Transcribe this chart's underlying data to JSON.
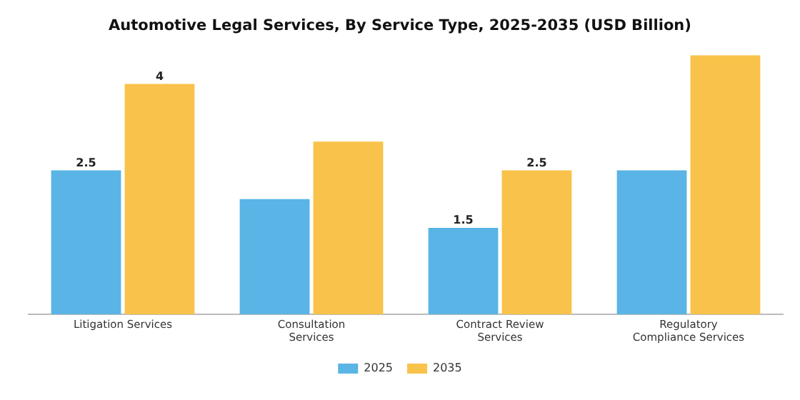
{
  "chart_data": {
    "type": "bar",
    "title": "Automotive Legal Services, By Service Type, 2025-2035 (USD Billion)",
    "categories": [
      "Litigation Services",
      "Consultation Services",
      "Contract Review Services",
      "Regulatory Compliance Services"
    ],
    "series": [
      {
        "name": "2025",
        "color": "#5ab4e5",
        "values": [
          2.5,
          2.0,
          1.5,
          2.5
        ],
        "value_labels": [
          "2.5",
          null,
          "1.5",
          null
        ]
      },
      {
        "name": "2035",
        "color": "#f9c24a",
        "values": [
          4,
          3.0,
          2.5,
          4.5
        ],
        "value_labels": [
          "4",
          null,
          "2.5",
          null
        ]
      }
    ],
    "tick_labels": "x",
    "grid": false,
    "legend": "bottom"
  }
}
